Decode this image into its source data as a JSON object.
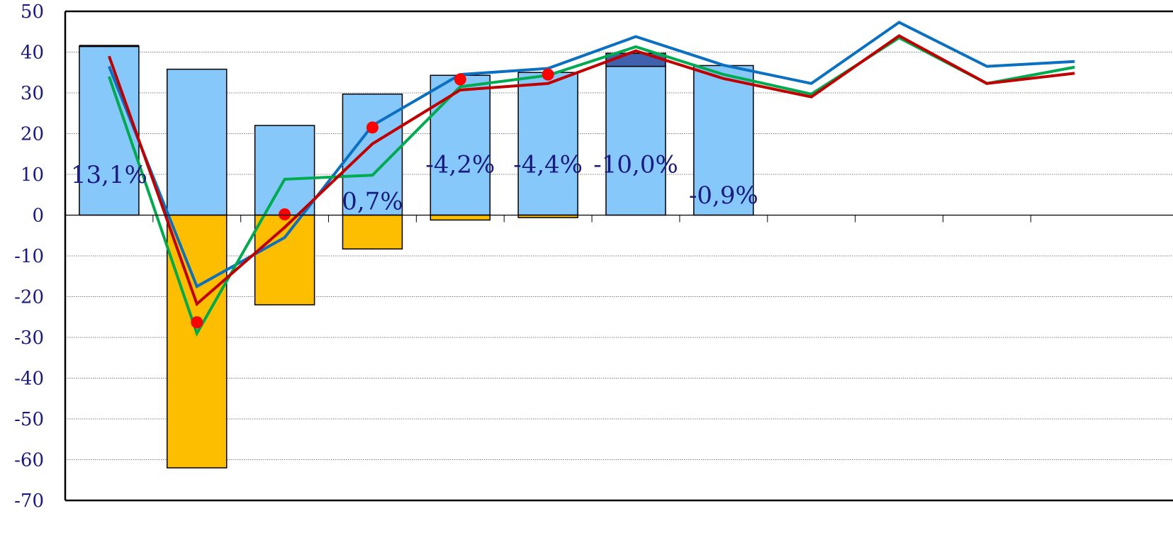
{
  "chart_data": {
    "type": "bar",
    "ylim": [
      -70,
      50
    ],
    "yticks": [
      50,
      40,
      30,
      20,
      10,
      0,
      -10,
      -20,
      -30,
      -40,
      -50,
      -60,
      -70
    ],
    "grid": true,
    "n_categories": 12,
    "bars_positive": [
      41.5,
      35.8,
      22.0,
      29.7,
      34.3,
      35.0,
      36.5,
      36.7
    ],
    "bars_negative": [
      0,
      -62,
      -22,
      -8.3,
      -1.2,
      -0.6,
      0,
      0
    ],
    "bars_top_dark": [
      0,
      0,
      0,
      0,
      0,
      0,
      3.2,
      0
    ],
    "line_blue": [
      36.5,
      -17.5,
      -5.5,
      22.0,
      34.5,
      36.0,
      43.8,
      36.8,
      32.3,
      47.3,
      36.5,
      37.7
    ],
    "line_green": [
      34.0,
      -29.0,
      8.8,
      9.8,
      31.5,
      34.3,
      41.3,
      34.5,
      29.7,
      43.5,
      32.3,
      36.3
    ],
    "line_red": [
      39.0,
      -21.8,
      -3.0,
      17.5,
      30.7,
      32.3,
      40.3,
      33.5,
      29.0,
      44.0,
      32.3,
      34.8
    ],
    "markers": [
      null,
      -26.3,
      0.2,
      21.5,
      33.3,
      34.5,
      null,
      null,
      null,
      null,
      null,
      null
    ],
    "data_labels": [
      "13,1%",
      "",
      "",
      "0,7%",
      "-4,2%",
      "-4,4%",
      "-10,0%",
      "-0,9%",
      "",
      "",
      "",
      ""
    ],
    "data_label_values": [
      10,
      null,
      null,
      3.5,
      12.5,
      12.5,
      12.5,
      5.0,
      null,
      null,
      null,
      null
    ],
    "colors": {
      "bar_pos": "#87c8fb",
      "bar_neg": "#fdbe00",
      "bar_top": "#3e62ad",
      "line_blue": "#0b70c0",
      "line_green": "#00aa4f",
      "line_red": "#c00000",
      "marker": "#ff0000",
      "text": "#1a1a80"
    }
  }
}
